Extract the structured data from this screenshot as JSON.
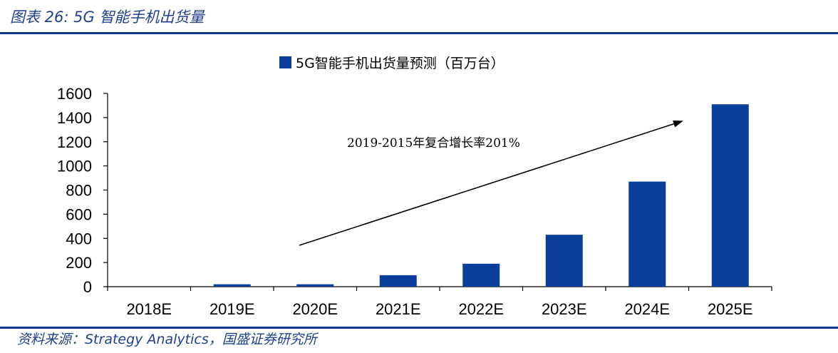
{
  "header": {
    "title": "图表 26:  5G 智能手机出货量"
  },
  "source": "资料来源：Strategy Analytics，国盛证券研究所",
  "colors": {
    "bar": "#0b3e9a",
    "rule": "#0d3a8e",
    "header_text": "#1f3f8f"
  },
  "chart_data": {
    "type": "bar",
    "categories": [
      "2018E",
      "2019E",
      "2020E",
      "2021E",
      "2022E",
      "2023E",
      "2024E",
      "2025E"
    ],
    "series": [
      {
        "name": "5G智能手机出货量预测（百万台）",
        "values": [
          0,
          20,
          20,
          95,
          190,
          430,
          870,
          1510
        ]
      }
    ],
    "ylim": [
      0,
      1600
    ],
    "yticks": [
      0,
      200,
      400,
      600,
      800,
      1000,
      1200,
      1400,
      1600
    ],
    "legend_position": "top-center",
    "grid": false,
    "annotation": {
      "text": "2019-2015年复合增长率201%"
    }
  }
}
